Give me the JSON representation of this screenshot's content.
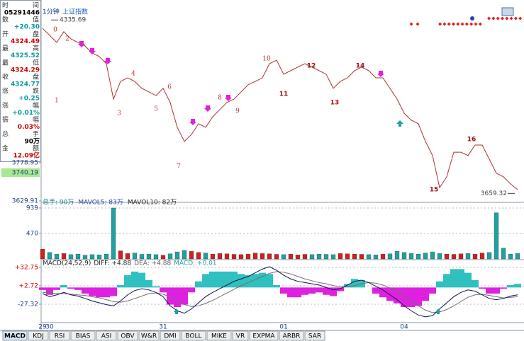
{
  "header": {
    "period": "1分钟",
    "symbol": "上证指数"
  },
  "info_panel": [
    {
      "label": "时间",
      "value": "05291446",
      "color": "#000000"
    },
    {
      "label": "数值",
      "value": "+20.30",
      "color": "#0a9a9a"
    },
    {
      "label": "开盘",
      "value": "4324.49",
      "color": "#d00000"
    },
    {
      "label": "最高",
      "value": "4325.52",
      "color": "#0a9a9a"
    },
    {
      "label": "最低",
      "value": "4324.29",
      "color": "#d00000"
    },
    {
      "label": "收盘",
      "value": "4324.77",
      "color": "#0a9a9a"
    },
    {
      "label": "涨跌",
      "value": "+0.25",
      "color": "#0a9a9a"
    },
    {
      "label": "涨幅",
      "value": "+0.01%",
      "color": "#0a9a9a"
    },
    {
      "label": "振幅",
      "value": "0.03%",
      "color": "#d00000"
    },
    {
      "label": "总手",
      "value": "90万",
      "color": "#000000"
    },
    {
      "label": "金额",
      "value": "12.09亿",
      "color": "#d00000"
    }
  ],
  "tabs": [
    "MACD",
    "KDJ",
    "RSI",
    "BIAS",
    "ASI",
    "OBV",
    "W&R",
    "DMI",
    "BOLL",
    "MIKE",
    "VR",
    "EXPMA",
    "ARBR",
    "SAR"
  ],
  "chart_data": [
    {
      "type": "line",
      "color": "#b03030",
      "categories": [
        "29",
        "30",
        null,
        null,
        null,
        null,
        null,
        null,
        null,
        null,
        null,
        null,
        null,
        null,
        null,
        null,
        null,
        "31",
        null,
        null,
        null,
        null,
        null,
        null,
        null,
        null,
        null,
        null,
        null,
        null,
        null,
        null,
        null,
        null,
        "01",
        null,
        null,
        null,
        null,
        null,
        null,
        null,
        null,
        null,
        null,
        null,
        null,
        null,
        null,
        null,
        null,
        "04",
        null,
        null,
        null,
        null,
        null,
        null,
        null,
        null,
        null,
        null,
        null,
        null,
        null,
        null,
        null,
        null
      ],
      "values": [
        4303,
        4276,
        4248,
        4290,
        4262,
        4248,
        4234,
        4207,
        4193,
        4165,
        4027,
        4096,
        4110,
        4096,
        4069,
        4055,
        4041,
        4069,
        4014,
        3917,
        3862,
        3889,
        3931,
        3917,
        3958,
        3986,
        4014,
        4027,
        4055,
        4083,
        4096,
        4110,
        4165,
        4179,
        4124,
        4138,
        4152,
        4165,
        4152,
        4138,
        4124,
        4069,
        4096,
        4110,
        4138,
        4152,
        4138,
        4110,
        4110,
        4069,
        4027,
        3972,
        3945,
        3931,
        3862,
        3807,
        3682,
        3724,
        3820,
        3820,
        3807,
        3848,
        3848,
        3793,
        3738,
        3724,
        3696,
        3674
      ],
      "ylim": [
        3629.91,
        4386
      ],
      "yticks": [
        3629.91,
        3778.95
      ],
      "cursor_label": 3740.19,
      "max_label": 4335.69,
      "min_label": 3659.32,
      "wave_labels": [
        "0",
        "1",
        "2",
        "3",
        "4",
        "5",
        "6",
        "7",
        "8",
        "9",
        "10",
        "11",
        "12",
        "13",
        "14",
        "15",
        "16"
      ]
    },
    {
      "type": "bar",
      "readouts": [
        "总手: 90万",
        "MAVOL5: 83万",
        "MAVOL10: 82万"
      ],
      "up_color": "#d02020",
      "down_color": "#20a0a0",
      "values": [
        180,
        120,
        90,
        100,
        80,
        90,
        70,
        80,
        75,
        90,
        939,
        150,
        100,
        110,
        85,
        90,
        80,
        70,
        95,
        130,
        160,
        140,
        120,
        110,
        90,
        100,
        95,
        85,
        80,
        90,
        110,
        100,
        95,
        85,
        80,
        90,
        75,
        85,
        80,
        90,
        85,
        80,
        100,
        95,
        90,
        85,
        80,
        75,
        90,
        95,
        140,
        120,
        100,
        90,
        110,
        130,
        100,
        90,
        85,
        95,
        100,
        90,
        110,
        120,
        850,
        200,
        90,
        100
      ],
      "ylim": [
        0,
        1017
      ],
      "yticks": [
        470,
        939
      ]
    },
    {
      "type": "macd",
      "readouts": [
        "MACD(24,52,9)",
        "DIFF: +4.88",
        "DEA: +4.88",
        "MACD: +0.01"
      ],
      "diff": {
        "color": "#101050",
        "values": [
          -10,
          -15,
          -12,
          -8,
          -12,
          -14,
          -18,
          -22,
          -25,
          -28,
          -30,
          -22,
          -12,
          -5,
          -2,
          -4,
          -8,
          -15,
          -30,
          -38,
          -42,
          -35,
          -25,
          -15,
          -8,
          -2,
          4,
          10,
          14,
          18,
          24,
          30,
          34,
          28,
          20,
          14,
          10,
          8,
          6,
          4,
          0,
          -4,
          -2,
          4,
          10,
          12,
          8,
          2,
          -4,
          -12,
          -20,
          -30,
          -38,
          -45,
          -48,
          -46,
          -35,
          -25,
          -15,
          -8,
          -4,
          -6,
          -12,
          -18,
          -20,
          -18,
          -14,
          -12
        ]
      },
      "dea": {
        "color": "#707070",
        "values": [
          -8,
          -9,
          -10,
          -10,
          -11,
          -12,
          -13,
          -15,
          -17,
          -20,
          -23,
          -24,
          -22,
          -18,
          -14,
          -10,
          -9,
          -11,
          -16,
          -22,
          -28,
          -31,
          -30,
          -26,
          -21,
          -15,
          -9,
          -3,
          3,
          8,
          13,
          18,
          23,
          26,
          25,
          22,
          18,
          14,
          11,
          8,
          6,
          3,
          1,
          1,
          3,
          6,
          8,
          7,
          4,
          -1,
          -7,
          -14,
          -22,
          -30,
          -37,
          -41,
          -40,
          -36,
          -30,
          -23,
          -16,
          -12,
          -11,
          -13,
          -15,
          -17,
          -16,
          -15
        ]
      },
      "macd": {
        "up_color": "#30c0c0",
        "down_color": "#e020e0",
        "values": [
          -4,
          -12,
          -4,
          4,
          -2,
          -4,
          -10,
          -14,
          -16,
          -16,
          -14,
          4,
          20,
          26,
          24,
          12,
          2,
          -8,
          -28,
          -32,
          -28,
          -8,
          10,
          22,
          26,
          26,
          26,
          26,
          22,
          20,
          22,
          24,
          22,
          4,
          -10,
          -16,
          -16,
          -12,
          -10,
          -8,
          -12,
          -14,
          -6,
          6,
          14,
          12,
          0,
          -10,
          -16,
          -22,
          -26,
          -32,
          -32,
          -30,
          -22,
          -10,
          10,
          22,
          30,
          30,
          24,
          12,
          -2,
          -10,
          -10,
          -2,
          4,
          6
        ]
      },
      "ylim": [
        -56.2,
        44.3
      ],
      "yticks": [
        {
          "value": 32.75,
          "label": "+32.75"
        },
        {
          "value": 2.72,
          "label": "+2.72"
        },
        -27.32
      ]
    }
  ]
}
